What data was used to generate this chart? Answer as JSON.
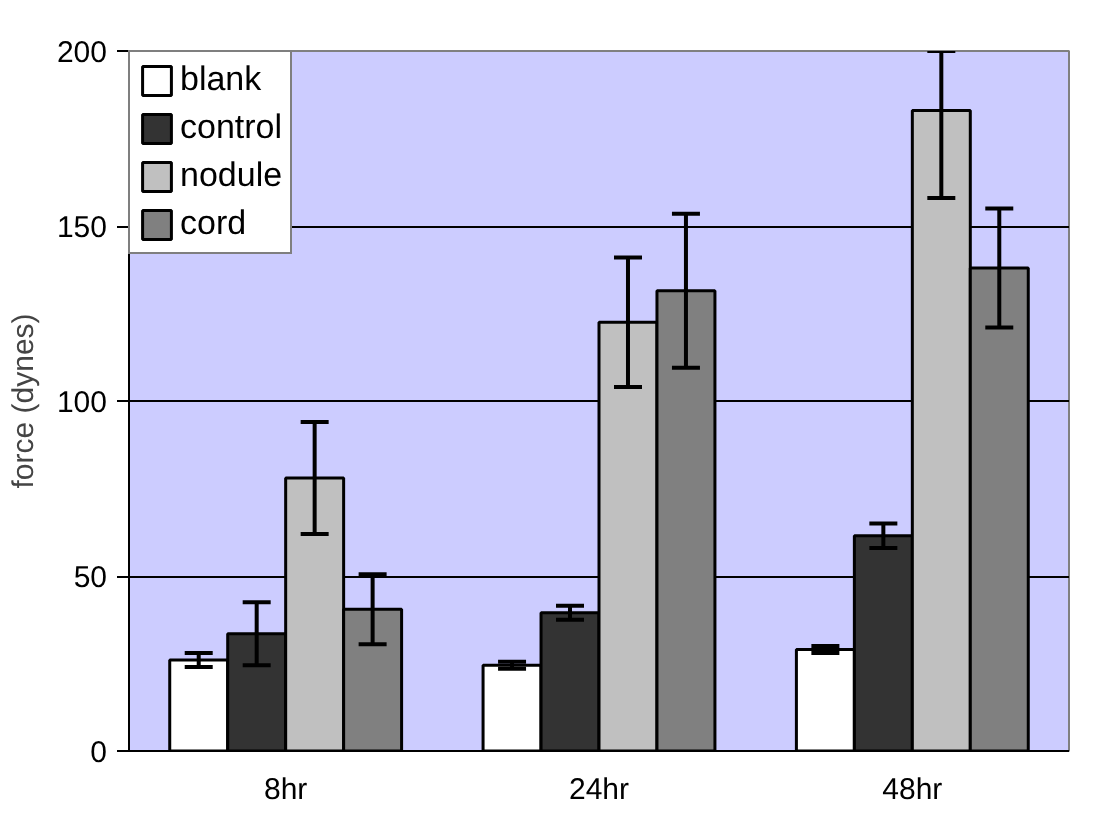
{
  "chart_data": {
    "type": "bar",
    "ylabel": "force (dynes)",
    "categories": [
      "8hr",
      "24hr",
      "48hr"
    ],
    "series": [
      {
        "name": "blank",
        "color": "#ffffff",
        "values": [
          26,
          24.5,
          29
        ],
        "errors": [
          2,
          1,
          1
        ]
      },
      {
        "name": "control",
        "color": "#333333",
        "values": [
          33.5,
          39.5,
          61.5
        ],
        "errors": [
          9,
          2,
          3.5
        ]
      },
      {
        "name": "nodule",
        "color": "#c0c0c0",
        "values": [
          78,
          122.5,
          183
        ],
        "errors": [
          16,
          18.5,
          [
            158,
            200
          ]
        ]
      },
      {
        "name": "cord",
        "color": "#808080",
        "values": [
          40.5,
          131.5,
          138
        ],
        "errors": [
          10,
          22,
          17
        ]
      }
    ],
    "ylim": [
      0,
      200
    ],
    "yticks": [
      0,
      50,
      100,
      150,
      200
    ],
    "grid": "y",
    "legend": "top left"
  }
}
